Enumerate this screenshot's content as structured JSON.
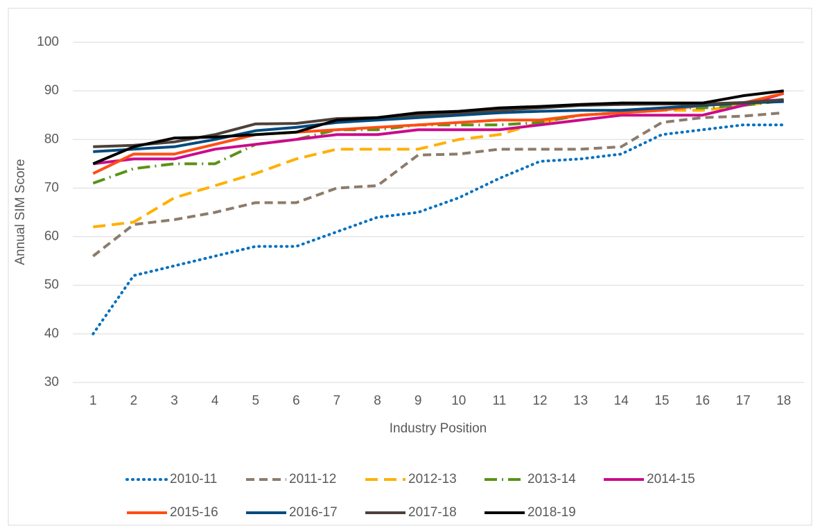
{
  "chart_data": {
    "type": "line",
    "x_label": "Industry Position",
    "y_label": "Annual SIM Score",
    "categories": [
      "1",
      "2",
      "3",
      "4",
      "5",
      "6",
      "7",
      "8",
      "9",
      "10",
      "11",
      "12",
      "13",
      "14",
      "15",
      "16",
      "17",
      "18"
    ],
    "ylim": [
      30,
      100
    ],
    "yticks": [
      30,
      40,
      50,
      60,
      70,
      80,
      90,
      100
    ],
    "grid": true,
    "series": [
      {
        "name": "2010-11",
        "color": "#0070c0",
        "dash": "dotted",
        "values": [
          40,
          52,
          54,
          56,
          58,
          58,
          61,
          64,
          65,
          68,
          72,
          75.5,
          76,
          77,
          81,
          82,
          83,
          83
        ]
      },
      {
        "name": "2011-12",
        "color": "#8c7b6b",
        "dash": "dashed",
        "values": [
          56,
          62.5,
          63.5,
          65,
          67,
          67,
          70,
          70.5,
          76.8,
          77,
          78,
          78,
          78,
          78.5,
          83.5,
          84.5,
          84.8,
          85.5
        ]
      },
      {
        "name": "2012-13",
        "color": "#ffb000",
        "dash": "long-dash",
        "values": [
          62,
          63,
          68,
          70.5,
          73,
          76,
          78,
          78,
          78,
          80,
          81,
          83.5,
          85,
          85.5,
          86,
          86,
          87,
          88
        ]
      },
      {
        "name": "2013-14",
        "color": "#5a9216",
        "dash": "dash-dot",
        "values": [
          71,
          74,
          75,
          75,
          79,
          80,
          82,
          82,
          83,
          83,
          83,
          83.5,
          85,
          85.5,
          86.5,
          86.5,
          87,
          88
        ]
      },
      {
        "name": "2014-15",
        "color": "#cc0a8c",
        "dash": "solid",
        "values": [
          75,
          76,
          76,
          78,
          79,
          80,
          81,
          81,
          82,
          82,
          82,
          83,
          84,
          85,
          85,
          85,
          87,
          89.5
        ]
      },
      {
        "name": "2015-16",
        "color": "#ff4e14",
        "dash": "solid",
        "values": [
          73,
          77,
          77,
          79,
          81,
          81.5,
          82,
          82.5,
          83,
          83.5,
          84,
          84,
          85,
          85.5,
          86,
          87,
          87.5,
          89.5
        ]
      },
      {
        "name": "2016-17",
        "color": "#004b7f",
        "dash": "solid",
        "values": [
          77.5,
          78,
          78.5,
          80,
          81.8,
          82.5,
          83.5,
          84,
          84.5,
          85,
          85.5,
          85.8,
          86,
          86,
          86.5,
          87,
          87.5,
          87.8
        ]
      },
      {
        "name": "2017-18",
        "color": "#4d4038",
        "dash": "solid",
        "values": [
          78.5,
          78.8,
          79.5,
          81,
          83.2,
          83.3,
          84.3,
          84.5,
          85,
          85.5,
          86,
          86.5,
          87,
          87.2,
          87.3,
          87.3,
          87.6,
          88.2
        ]
      },
      {
        "name": "2018-19",
        "color": "#000000",
        "dash": "solid",
        "values": [
          75,
          78.5,
          80.3,
          80.5,
          81,
          81.5,
          84,
          84.5,
          85.5,
          85.8,
          86.5,
          86.8,
          87.2,
          87.5,
          87.5,
          87.5,
          89,
          90
        ]
      }
    ]
  }
}
